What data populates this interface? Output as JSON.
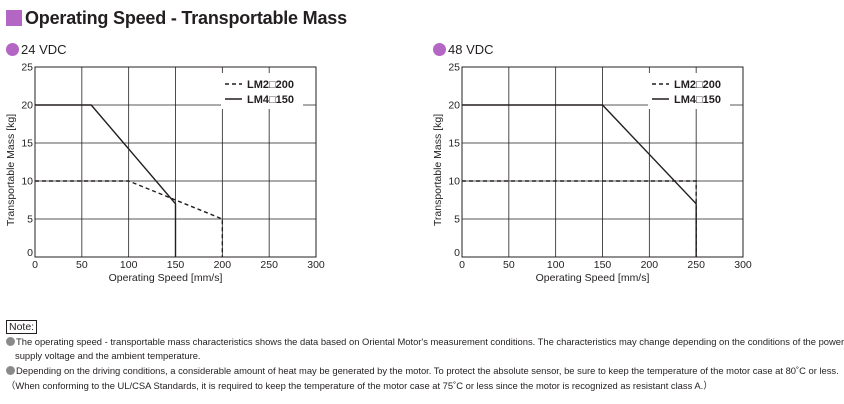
{
  "page": {
    "title": "Operating Speed - Transportable Mass",
    "accent_color": "#b466c4"
  },
  "chart_data": [
    {
      "type": "line",
      "title": "24 VDC",
      "xlabel": "Operating Speed [mm/s]",
      "ylabel": "Transportable Mass [kg]",
      "xlim": [
        0,
        300
      ],
      "ylim": [
        0,
        25
      ],
      "xticks": [
        "0",
        "50",
        "100",
        "150",
        "200",
        "250",
        "300"
      ],
      "yticks": [
        "0",
        "5",
        "10",
        "15",
        "20",
        "25"
      ],
      "grid": true,
      "legend": "top-right",
      "series": [
        {
          "name": "LM2□200",
          "style": "dashed",
          "x": [
            0,
            100,
            200,
            200
          ],
          "y": [
            10,
            10,
            5,
            0
          ]
        },
        {
          "name": "LM4□150",
          "style": "solid",
          "x": [
            0,
            60,
            150,
            150
          ],
          "y": [
            20,
            20,
            7,
            0
          ]
        }
      ]
    },
    {
      "type": "line",
      "title": "48 VDC",
      "xlabel": "Operating Speed [mm/s]",
      "ylabel": "Transportable Mass [kg]",
      "xlim": [
        0,
        300
      ],
      "ylim": [
        0,
        25
      ],
      "xticks": [
        "0",
        "50",
        "100",
        "150",
        "200",
        "250",
        "300"
      ],
      "yticks": [
        "0",
        "5",
        "10",
        "15",
        "20",
        "25"
      ],
      "grid": true,
      "legend": "top-right",
      "series": [
        {
          "name": "LM2□200",
          "style": "dashed",
          "x": [
            0,
            250,
            250
          ],
          "y": [
            10,
            10,
            0
          ]
        },
        {
          "name": "LM4□150",
          "style": "solid",
          "x": [
            0,
            150,
            250,
            250
          ],
          "y": [
            20,
            20,
            7,
            0
          ]
        }
      ]
    }
  ],
  "notes": {
    "label": "Note:",
    "line1": "The operating speed - transportable mass characteristics shows the data based on Oriental Motor's measurement conditions. The characteristics may change depending on the conditions of the power",
    "line2": "supply voltage and the ambient temperature.",
    "line3": "Depending on the driving conditions, a considerable amount of heat may be generated by the motor. To protect the absolute sensor, be sure to keep the temperature of the motor case at 80˚C or less.",
    "line4": "（When conforming to the UL/CSA Standards, it is required to keep the temperature of the motor case at 75˚C or less since the motor is recognized as resistant class A.）"
  }
}
